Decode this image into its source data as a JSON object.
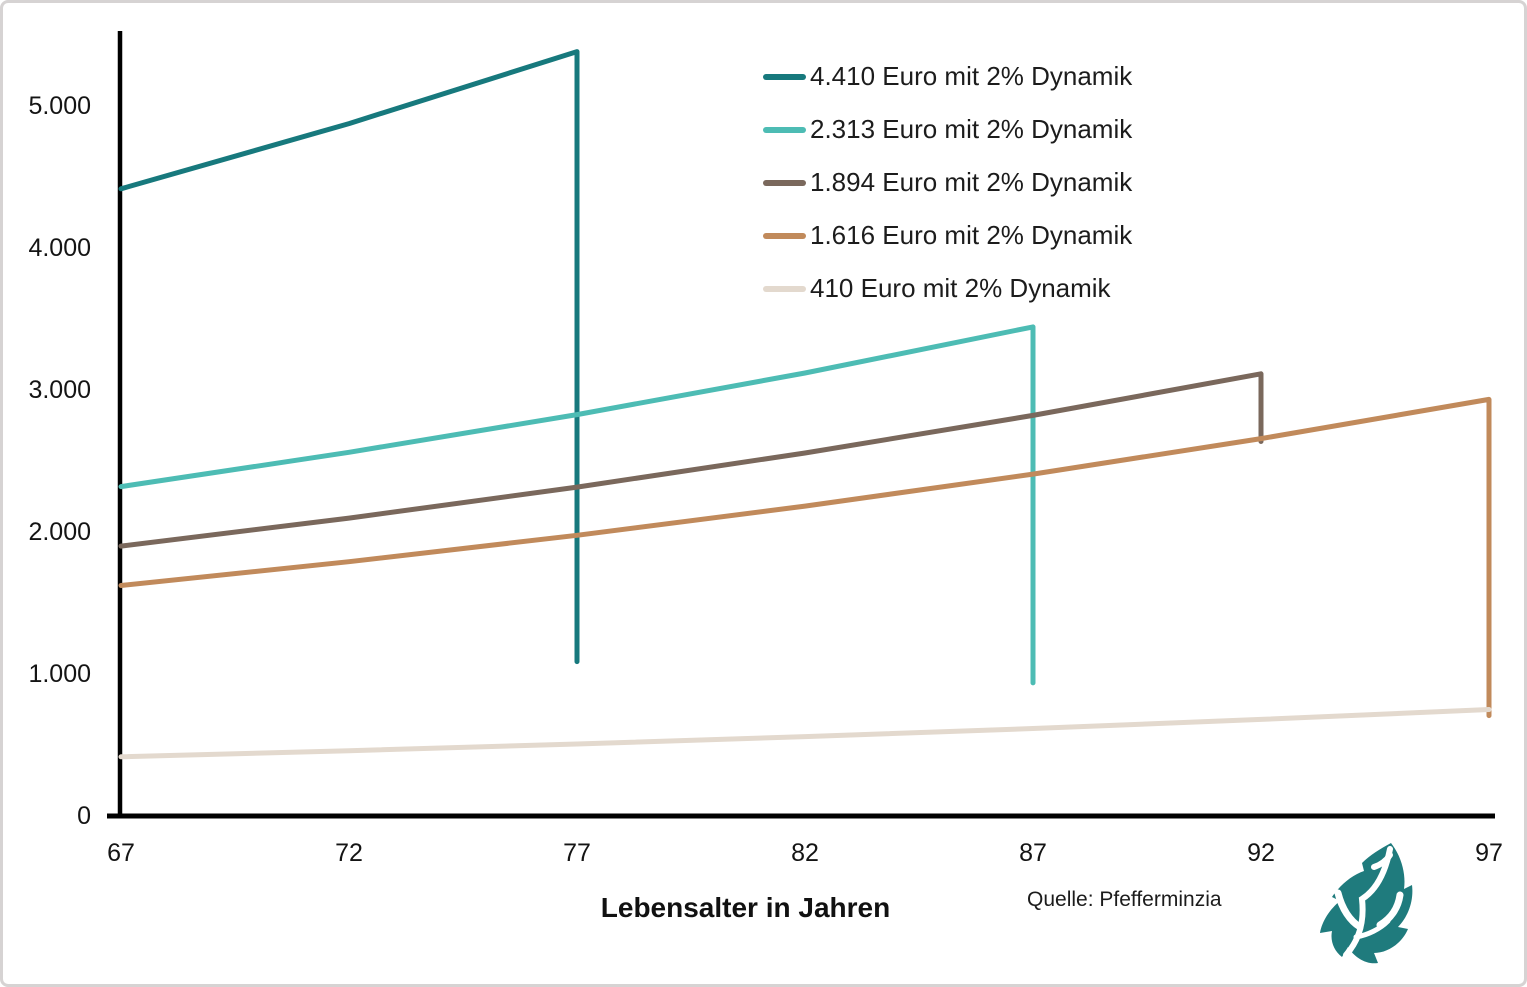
{
  "chart_data": {
    "type": "line",
    "title": "",
    "xlabel": "Lebensalter in Jahren",
    "ylabel": "",
    "grid": false,
    "legend_position": "top-right",
    "x_axis": {
      "min": 67,
      "max": 97
    },
    "y_axis": {
      "min": 0,
      "max": 5500
    },
    "x_ticks": {
      "values": [
        67,
        72,
        77,
        82,
        87,
        92,
        97
      ],
      "labels": [
        "67",
        "72",
        "77",
        "82",
        "87",
        "92",
        "97"
      ]
    },
    "y_ticks": {
      "values": [
        0,
        1000,
        2000,
        3000,
        4000,
        5000
      ],
      "labels": [
        "0",
        "1.000",
        "2.000",
        "3.000",
        "4.000",
        "5.000"
      ]
    },
    "annual_growth_pct": 2,
    "series": [
      {
        "name": "4.410 Euro mit 2% Dynamik",
        "color": "#17797d",
        "points": [
          [
            67,
            4410
          ],
          [
            72,
            4869
          ],
          [
            77,
            5376
          ],
          [
            77,
            1080
          ]
        ]
      },
      {
        "name": "2.313 Euro mit 2% Dynamik",
        "color": "#4dbcb4",
        "points": [
          [
            67,
            2313
          ],
          [
            72,
            2554
          ],
          [
            77,
            2820
          ],
          [
            82,
            3113
          ],
          [
            87,
            3437
          ],
          [
            87,
            930
          ]
        ]
      },
      {
        "name": "1.894 Euro mit 2% Dynamik",
        "color": "#7a685c",
        "points": [
          [
            67,
            1894
          ],
          [
            72,
            2091
          ],
          [
            77,
            2309
          ],
          [
            82,
            2549
          ],
          [
            87,
            2814
          ],
          [
            92,
            3107
          ],
          [
            92,
            2630
          ]
        ]
      },
      {
        "name": "1.616 Euro mit 2% Dynamik",
        "color": "#c18a5b",
        "points": [
          [
            67,
            1616
          ],
          [
            72,
            1784
          ],
          [
            77,
            1970
          ],
          [
            82,
            2175
          ],
          [
            87,
            2401
          ],
          [
            92,
            2651
          ],
          [
            97,
            2927
          ],
          [
            97,
            700
          ]
        ]
      },
      {
        "name": "410 Euro mit 2% Dynamik",
        "color": "#e3d9ce",
        "points": [
          [
            67,
            410
          ],
          [
            72,
            453
          ],
          [
            77,
            500
          ],
          [
            82,
            552
          ],
          [
            87,
            609
          ],
          [
            92,
            673
          ],
          [
            97,
            743
          ]
        ]
      }
    ]
  },
  "footer": {
    "source": "Quelle: Pfefferminzia"
  },
  "logo": {
    "name": "pfefferminzia-leaf-logo",
    "color": "#1f7b7d"
  }
}
